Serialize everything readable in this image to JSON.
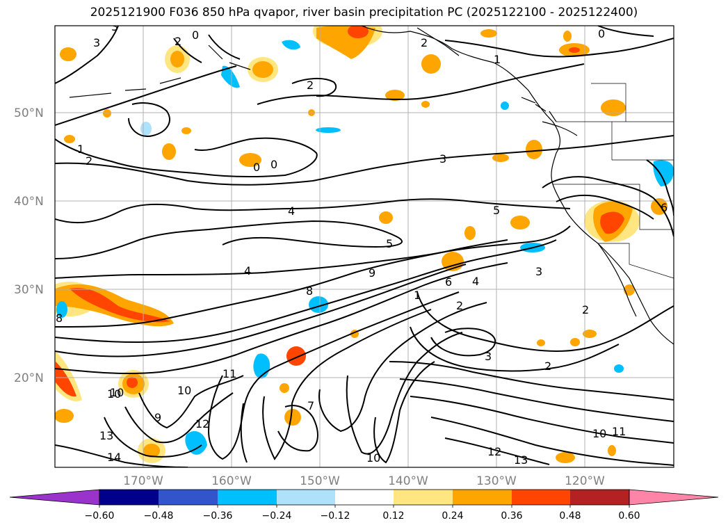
{
  "title": "2025121900 F036 850 hPa qvapor, river basin precipitation PC (2025122100 - 2025122400)",
  "map": {
    "lat_labels": [
      "50°N",
      "40°N",
      "30°N",
      "20°N"
    ],
    "lon_labels": [
      "170°W",
      "160°W",
      "150°W",
      "140°W",
      "130°W",
      "120°W"
    ],
    "lon_range": [
      -180,
      -110
    ],
    "lat_range": [
      10,
      60
    ],
    "contour_labels": [
      "3",
      "3",
      "0",
      "2",
      "2",
      "1",
      "0",
      "2",
      "1",
      "2",
      "0",
      "0",
      "3",
      "4",
      "5",
      "5",
      "4",
      "8",
      "9",
      "1",
      "6",
      "4",
      "3",
      "2",
      "2",
      "2",
      "3",
      "10",
      "11",
      "10",
      "10",
      "9",
      "12",
      "13",
      "14",
      "7",
      "10",
      "12",
      "13",
      "10",
      "11",
      "6",
      "8"
    ]
  },
  "colorbar": {
    "ticks": [
      "−0.60",
      "−0.48",
      "−0.36",
      "−0.24",
      "−0.12",
      "0.12",
      "0.24",
      "0.36",
      "0.48",
      "0.60"
    ],
    "colors": [
      "#9933cc",
      "#00008b",
      "#3355cc",
      "#00bfff",
      "#aee1fa",
      "#ffffff",
      "#ffe680",
      "#ffa500",
      "#ff4500",
      "#b22222",
      "#ff85a8",
      "#ff85a8"
    ]
  }
}
